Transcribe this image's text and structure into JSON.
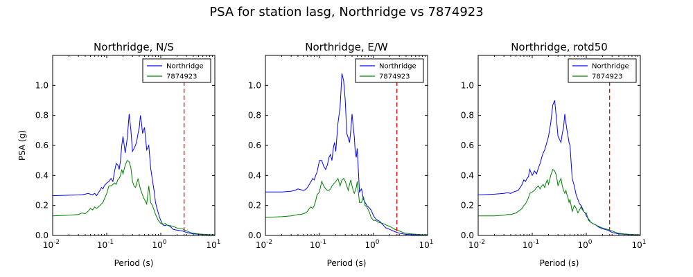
{
  "figure": {
    "suptitle": "PSA for station lasg, Northridge vs 7874923"
  },
  "colors": {
    "northridge": "#0000ff",
    "sim": "#008000",
    "marker": "#ff0000"
  },
  "chart_data": [
    {
      "type": "line",
      "title": "Northridge, N/S",
      "xlabel": "Period (s)",
      "ylabel": "PSA (g)",
      "xscale": "log",
      "xlim": [
        0.01,
        10
      ],
      "ylim": [
        0,
        1.2
      ],
      "yticks": [
        0.0,
        0.2,
        0.4,
        0.6,
        0.8,
        1.0
      ],
      "ytick_labels": [
        "0.0",
        "0.2",
        "0.4",
        "0.6",
        "0.8",
        "1.0"
      ],
      "xticks": [
        0.01,
        0.1,
        1,
        10
      ],
      "xtick_labels": [
        [
          "10",
          "-2"
        ],
        [
          "10",
          "-1"
        ],
        [
          "10",
          "0"
        ],
        [
          "10",
          "1"
        ]
      ],
      "legend": "top-right",
      "vline_x": 2.7,
      "series": [
        {
          "name": "Northridge",
          "x": [
            0.01,
            0.02,
            0.03,
            0.035,
            0.04,
            0.045,
            0.05,
            0.055,
            0.06,
            0.065,
            0.07,
            0.075,
            0.08,
            0.085,
            0.09,
            0.1,
            0.11,
            0.12,
            0.13,
            0.14,
            0.15,
            0.16,
            0.17,
            0.18,
            0.19,
            0.2,
            0.22,
            0.24,
            0.26,
            0.28,
            0.3,
            0.32,
            0.34,
            0.36,
            0.38,
            0.4,
            0.42,
            0.44,
            0.46,
            0.48,
            0.5,
            0.55,
            0.6,
            0.65,
            0.7,
            0.75,
            0.8,
            0.85,
            0.9,
            0.95,
            1.0,
            1.1,
            1.2,
            1.3,
            1.5,
            1.7,
            2.0,
            2.5,
            3.0,
            3.5,
            4.0,
            5.0,
            6.0,
            7.5,
            10.0
          ],
          "y": [
            0.265,
            0.268,
            0.27,
            0.272,
            0.275,
            0.28,
            0.275,
            0.272,
            0.28,
            0.265,
            0.285,
            0.3,
            0.32,
            0.31,
            0.33,
            0.35,
            0.36,
            0.38,
            0.36,
            0.43,
            0.48,
            0.47,
            0.44,
            0.5,
            0.6,
            0.66,
            0.55,
            0.65,
            0.81,
            0.7,
            0.56,
            0.58,
            0.6,
            0.63,
            0.68,
            0.72,
            0.8,
            0.75,
            0.68,
            0.7,
            0.72,
            0.57,
            0.6,
            0.45,
            0.37,
            0.3,
            0.22,
            0.18,
            0.15,
            0.12,
            0.1,
            0.07,
            0.065,
            0.07,
            0.06,
            0.04,
            0.035,
            0.03,
            0.02,
            0.015,
            0.01,
            0.008,
            0.006,
            0.005,
            0.004
          ]
        },
        {
          "name": "7874923",
          "x": [
            0.01,
            0.02,
            0.03,
            0.035,
            0.04,
            0.045,
            0.05,
            0.055,
            0.06,
            0.065,
            0.07,
            0.075,
            0.08,
            0.085,
            0.09,
            0.1,
            0.11,
            0.12,
            0.13,
            0.14,
            0.15,
            0.16,
            0.17,
            0.18,
            0.19,
            0.2,
            0.22,
            0.24,
            0.26,
            0.28,
            0.3,
            0.32,
            0.34,
            0.36,
            0.38,
            0.4,
            0.42,
            0.44,
            0.46,
            0.48,
            0.5,
            0.55,
            0.6,
            0.65,
            0.7,
            0.75,
            0.8,
            0.85,
            0.9,
            0.95,
            1.0,
            1.1,
            1.2,
            1.3,
            1.5,
            1.7,
            2.0,
            2.5,
            3.0,
            3.5,
            4.0,
            5.0,
            6.0,
            7.5,
            10.0
          ],
          "y": [
            0.13,
            0.135,
            0.14,
            0.15,
            0.145,
            0.16,
            0.18,
            0.17,
            0.19,
            0.18,
            0.19,
            0.2,
            0.21,
            0.22,
            0.24,
            0.28,
            0.33,
            0.33,
            0.34,
            0.35,
            0.34,
            0.37,
            0.38,
            0.4,
            0.44,
            0.41,
            0.47,
            0.5,
            0.49,
            0.45,
            0.36,
            0.33,
            0.32,
            0.35,
            0.38,
            0.34,
            0.31,
            0.29,
            0.27,
            0.25,
            0.24,
            0.21,
            0.33,
            0.22,
            0.2,
            0.17,
            0.14,
            0.12,
            0.1,
            0.09,
            0.08,
            0.075,
            0.08,
            0.07,
            0.065,
            0.06,
            0.05,
            0.045,
            0.03,
            0.02,
            0.015,
            0.01,
            0.008,
            0.006,
            0.005
          ]
        }
      ]
    },
    {
      "type": "line",
      "title": "Northridge, E/W",
      "xlabel": "Period (s)",
      "ylabel": "",
      "xscale": "log",
      "xlim": [
        0.01,
        10
      ],
      "ylim": [
        0,
        1.2
      ],
      "yticks": [
        0.0,
        0.2,
        0.4,
        0.6,
        0.8,
        1.0
      ],
      "ytick_labels": [
        "0.0",
        "0.2",
        "0.4",
        "0.6",
        "0.8",
        "1.0"
      ],
      "xticks": [
        0.01,
        0.1,
        1,
        10
      ],
      "xtick_labels": [
        [
          "10",
          "-2"
        ],
        [
          "10",
          "-1"
        ],
        [
          "10",
          "0"
        ],
        [
          "10",
          "1"
        ]
      ],
      "legend": "top-right",
      "vline_x": 2.7,
      "series": [
        {
          "name": "Northridge",
          "x": [
            0.01,
            0.02,
            0.03,
            0.035,
            0.04,
            0.045,
            0.05,
            0.055,
            0.06,
            0.065,
            0.07,
            0.075,
            0.08,
            0.085,
            0.09,
            0.1,
            0.11,
            0.12,
            0.13,
            0.14,
            0.15,
            0.16,
            0.17,
            0.18,
            0.19,
            0.2,
            0.22,
            0.24,
            0.26,
            0.28,
            0.3,
            0.32,
            0.34,
            0.36,
            0.38,
            0.4,
            0.42,
            0.44,
            0.46,
            0.48,
            0.5,
            0.55,
            0.6,
            0.65,
            0.7,
            0.75,
            0.8,
            0.85,
            0.9,
            0.95,
            1.0,
            1.1,
            1.2,
            1.3,
            1.5,
            1.7,
            2.0,
            2.5,
            3.0,
            3.5,
            4.0,
            5.0,
            6.0,
            7.5,
            10.0
          ],
          "y": [
            0.29,
            0.29,
            0.295,
            0.3,
            0.31,
            0.305,
            0.3,
            0.305,
            0.32,
            0.34,
            0.36,
            0.38,
            0.37,
            0.4,
            0.42,
            0.5,
            0.5,
            0.46,
            0.44,
            0.47,
            0.52,
            0.54,
            0.5,
            0.58,
            0.62,
            0.56,
            0.75,
            0.85,
            1.08,
            1.03,
            0.9,
            0.68,
            0.65,
            0.62,
            0.7,
            0.81,
            0.73,
            0.66,
            0.55,
            0.52,
            0.58,
            0.29,
            0.31,
            0.24,
            0.22,
            0.2,
            0.19,
            0.18,
            0.17,
            0.15,
            0.13,
            0.11,
            0.1,
            0.095,
            0.07,
            0.05,
            0.04,
            0.025,
            0.015,
            0.01,
            0.008,
            0.005,
            0.004,
            0.003,
            0.002
          ]
        },
        {
          "name": "7874923",
          "x": [
            0.01,
            0.02,
            0.03,
            0.035,
            0.04,
            0.045,
            0.05,
            0.055,
            0.06,
            0.065,
            0.07,
            0.075,
            0.08,
            0.085,
            0.09,
            0.1,
            0.11,
            0.12,
            0.13,
            0.14,
            0.15,
            0.16,
            0.17,
            0.18,
            0.19,
            0.2,
            0.22,
            0.24,
            0.26,
            0.28,
            0.3,
            0.32,
            0.34,
            0.36,
            0.38,
            0.4,
            0.42,
            0.44,
            0.46,
            0.48,
            0.5,
            0.55,
            0.6,
            0.65,
            0.7,
            0.75,
            0.8,
            0.85,
            0.9,
            0.95,
            1.0,
            1.1,
            1.2,
            1.3,
            1.5,
            1.7,
            2.0,
            2.5,
            3.0,
            3.5,
            4.0,
            5.0,
            6.0,
            7.5,
            10.0
          ],
          "y": [
            0.12,
            0.125,
            0.13,
            0.135,
            0.14,
            0.14,
            0.145,
            0.15,
            0.16,
            0.18,
            0.19,
            0.18,
            0.2,
            0.23,
            0.27,
            0.29,
            0.36,
            0.33,
            0.31,
            0.3,
            0.3,
            0.31,
            0.33,
            0.34,
            0.35,
            0.36,
            0.38,
            0.33,
            0.37,
            0.38,
            0.36,
            0.33,
            0.3,
            0.34,
            0.37,
            0.33,
            0.3,
            0.28,
            0.3,
            0.32,
            0.36,
            0.22,
            0.22,
            0.26,
            0.2,
            0.19,
            0.17,
            0.15,
            0.12,
            0.11,
            0.1,
            0.1,
            0.09,
            0.085,
            0.08,
            0.07,
            0.06,
            0.04,
            0.03,
            0.02,
            0.015,
            0.01,
            0.008,
            0.006,
            0.005
          ]
        }
      ]
    },
    {
      "type": "line",
      "title": "Northridge, rotd50",
      "xlabel": "Period (s)",
      "ylabel": "",
      "xscale": "log",
      "xlim": [
        0.01,
        10
      ],
      "ylim": [
        0,
        1.2
      ],
      "yticks": [
        0.0,
        0.2,
        0.4,
        0.6,
        0.8,
        1.0
      ],
      "ytick_labels": [
        "0.0",
        "0.2",
        "0.4",
        "0.6",
        "0.8",
        "1.0"
      ],
      "xticks": [
        0.01,
        0.1,
        1,
        10
      ],
      "xtick_labels": [
        [
          "10",
          "-2"
        ],
        [
          "10",
          "-1"
        ],
        [
          "10",
          "0"
        ],
        [
          "10",
          "1"
        ]
      ],
      "legend": "top-right",
      "vline_x": 2.7,
      "series": [
        {
          "name": "Northridge",
          "x": [
            0.01,
            0.02,
            0.03,
            0.035,
            0.04,
            0.045,
            0.05,
            0.055,
            0.06,
            0.065,
            0.07,
            0.075,
            0.08,
            0.085,
            0.09,
            0.1,
            0.11,
            0.12,
            0.13,
            0.14,
            0.15,
            0.16,
            0.17,
            0.18,
            0.19,
            0.2,
            0.22,
            0.24,
            0.26,
            0.28,
            0.3,
            0.32,
            0.34,
            0.36,
            0.38,
            0.4,
            0.42,
            0.44,
            0.46,
            0.48,
            0.5,
            0.55,
            0.6,
            0.65,
            0.7,
            0.75,
            0.8,
            0.85,
            0.9,
            0.95,
            1.0,
            1.1,
            1.2,
            1.3,
            1.5,
            1.7,
            2.0,
            2.5,
            3.0,
            3.5,
            4.0,
            5.0,
            6.0,
            7.5,
            10.0
          ],
          "y": [
            0.27,
            0.275,
            0.28,
            0.285,
            0.28,
            0.29,
            0.295,
            0.3,
            0.32,
            0.34,
            0.37,
            0.36,
            0.38,
            0.39,
            0.44,
            0.4,
            0.43,
            0.41,
            0.45,
            0.48,
            0.52,
            0.55,
            0.57,
            0.6,
            0.63,
            0.66,
            0.75,
            0.87,
            0.9,
            0.78,
            0.66,
            0.64,
            0.62,
            0.68,
            0.72,
            0.81,
            0.75,
            0.7,
            0.66,
            0.62,
            0.6,
            0.38,
            0.33,
            0.27,
            0.24,
            0.21,
            0.2,
            0.18,
            0.16,
            0.15,
            0.13,
            0.11,
            0.09,
            0.08,
            0.07,
            0.055,
            0.045,
            0.035,
            0.02,
            0.015,
            0.01,
            0.008,
            0.006,
            0.005,
            0.004
          ]
        },
        {
          "name": "7874923",
          "x": [
            0.01,
            0.02,
            0.03,
            0.035,
            0.04,
            0.045,
            0.05,
            0.055,
            0.06,
            0.065,
            0.07,
            0.075,
            0.08,
            0.085,
            0.09,
            0.1,
            0.11,
            0.12,
            0.13,
            0.14,
            0.15,
            0.16,
            0.17,
            0.18,
            0.19,
            0.2,
            0.22,
            0.24,
            0.26,
            0.28,
            0.3,
            0.32,
            0.34,
            0.36,
            0.38,
            0.4,
            0.42,
            0.44,
            0.46,
            0.48,
            0.5,
            0.55,
            0.6,
            0.65,
            0.7,
            0.75,
            0.8,
            0.85,
            0.9,
            0.95,
            1.0,
            1.1,
            1.2,
            1.3,
            1.5,
            1.7,
            2.0,
            2.5,
            3.0,
            3.5,
            4.0,
            5.0,
            6.0,
            7.5,
            10.0
          ],
          "y": [
            0.13,
            0.13,
            0.135,
            0.14,
            0.14,
            0.145,
            0.15,
            0.16,
            0.17,
            0.18,
            0.2,
            0.21,
            0.23,
            0.25,
            0.28,
            0.29,
            0.3,
            0.32,
            0.33,
            0.31,
            0.33,
            0.34,
            0.32,
            0.35,
            0.37,
            0.34,
            0.4,
            0.44,
            0.43,
            0.4,
            0.33,
            0.36,
            0.38,
            0.33,
            0.3,
            0.28,
            0.3,
            0.27,
            0.25,
            0.22,
            0.24,
            0.16,
            0.2,
            0.18,
            0.15,
            0.17,
            0.19,
            0.17,
            0.16,
            0.15,
            0.15,
            0.1,
            0.09,
            0.08,
            0.07,
            0.06,
            0.05,
            0.04,
            0.03,
            0.02,
            0.015,
            0.01,
            0.008,
            0.006,
            0.005
          ]
        }
      ]
    }
  ]
}
